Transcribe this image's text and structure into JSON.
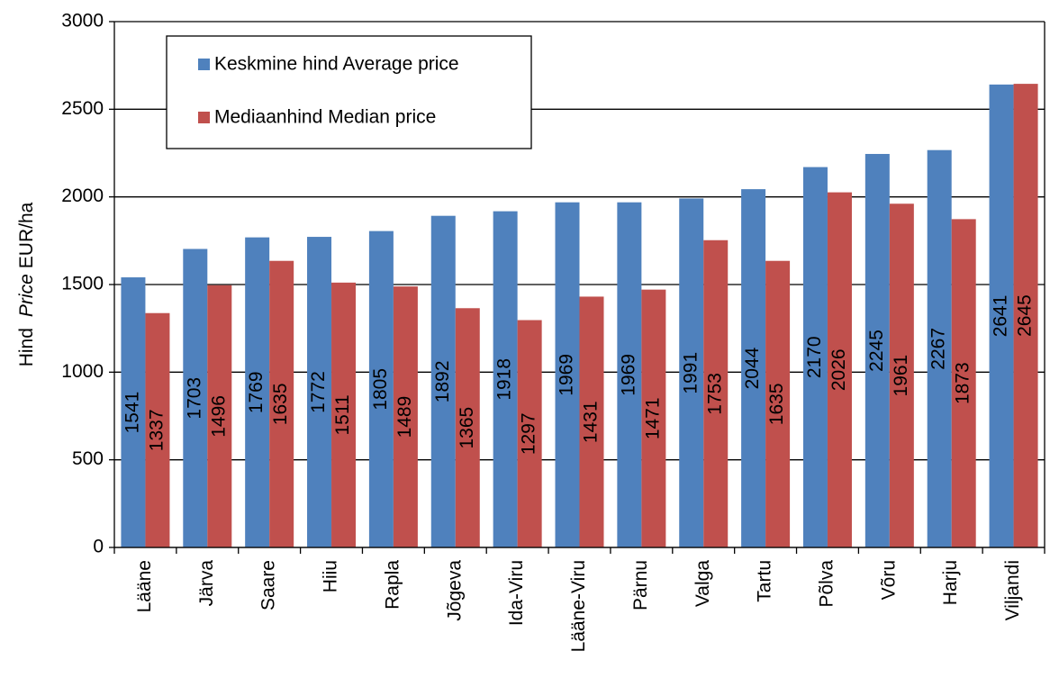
{
  "chart_data": {
    "type": "bar",
    "y_label": [
      "Hind",
      "Price",
      "EUR/ha"
    ],
    "categories": [
      "Lääne",
      "Järva",
      "Saare",
      "Hiiu",
      "Rapla",
      "Jõgeva",
      "Ida-Viru",
      "Lääne-Viru",
      "Pärnu",
      "Valga",
      "Tartu",
      "Põlva",
      "Võru",
      "Harju",
      "Viljandi"
    ],
    "series": [
      {
        "name": "Keskmine hind Average price",
        "color": "#4f81bd",
        "values": [
          1541,
          1703,
          1769,
          1772,
          1805,
          1892,
          1918,
          1969,
          1969,
          1991,
          2044,
          2170,
          2245,
          2267,
          2641
        ]
      },
      {
        "name": "Mediaanhind Median price",
        "color": "#c0504d",
        "values": [
          1337,
          1496,
          1635,
          1511,
          1489,
          1365,
          1297,
          1431,
          1471,
          1753,
          1635,
          2026,
          1961,
          1873,
          2645
        ]
      }
    ],
    "ylim": [
      0,
      3000
    ],
    "yticks": [
      0,
      500,
      1000,
      1500,
      2000,
      2500,
      3000
    ],
    "grid": true
  }
}
